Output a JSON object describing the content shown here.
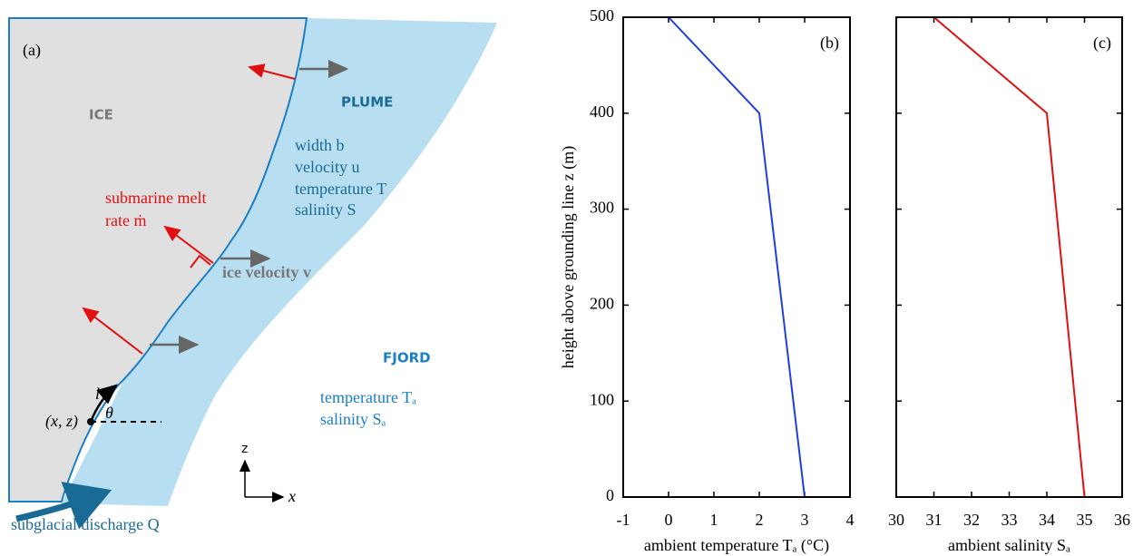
{
  "diagram": {
    "panel": "(a)",
    "ice": "ICE",
    "plume": "PLUME",
    "plume_props": [
      "width b",
      "velocity u",
      "temperature T",
      "salinity S"
    ],
    "melt": [
      "submarine melt",
      "rate ṁ"
    ],
    "ice_velocity": "ice velocity v",
    "fjord": "FJORD",
    "fjord_props": [
      "temperature Tₐ",
      "salinity Sₐ"
    ],
    "l": "l",
    "theta": "θ",
    "point": "(x, z)",
    "z_axis": "z",
    "x_axis": "x",
    "discharge": "subglacial discharge Q"
  },
  "chart_data": [
    {
      "type": "line",
      "panel": "(b)",
      "xlabel": "ambient temperature Tₐ (°C)",
      "ylabel": "height above grounding line z (m)",
      "x": [
        0,
        2,
        3
      ],
      "y": [
        500,
        400,
        0
      ],
      "color": "#1f3fe0",
      "xlim": [
        -1,
        4
      ],
      "xticks": [
        -1,
        0,
        1,
        2,
        3,
        4
      ],
      "ylim": [
        0,
        500
      ],
      "yticks": [
        0,
        100,
        200,
        300,
        400,
        500
      ]
    },
    {
      "type": "line",
      "panel": "(c)",
      "xlabel": "ambient salinity Sₐ",
      "x": [
        31,
        34,
        35
      ],
      "y": [
        500,
        400,
        0
      ],
      "color": "#e01010",
      "xlim": [
        30,
        36
      ],
      "xticks": [
        30,
        31,
        32,
        33,
        34,
        35,
        36
      ],
      "ylim": [
        0,
        500
      ],
      "yticks": [
        0,
        100,
        200,
        300,
        400,
        500
      ]
    }
  ]
}
